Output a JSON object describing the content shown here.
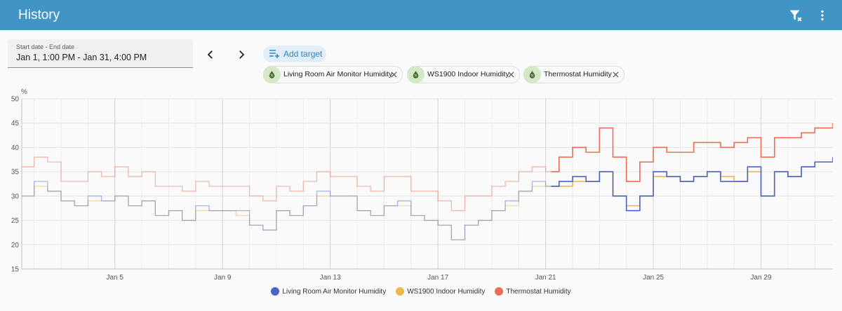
{
  "header": {
    "title": "History"
  },
  "date_range": {
    "label": "Start date - End date",
    "value": "Jan 1, 1:00 PM - Jan 31, 4:00 PM"
  },
  "toolbar": {
    "add_target_label": "Add target"
  },
  "targets": [
    {
      "label": "Living Room Air Monitor Humidity"
    },
    {
      "label": "WS1900 Indoor Humidity"
    },
    {
      "label": "Thermostat Humidity"
    }
  ],
  "colors": {
    "accent": "#4194c6",
    "living": "#4a63c9",
    "ws1900": "#ebb949",
    "thermostat": "#e96d55"
  },
  "chart_data": {
    "type": "line",
    "title": "",
    "ylabel": "%",
    "xlabel": "",
    "ylim": [
      15,
      50
    ],
    "xlim": [
      1.54,
      31.67
    ],
    "yticks": [
      "15",
      "20",
      "25",
      "30",
      "35",
      "40",
      "45",
      "50"
    ],
    "xticks": [
      {
        "label": "Jan 5",
        "x": 5
      },
      {
        "label": "Jan 9",
        "x": 9
      },
      {
        "label": "Jan 13",
        "x": 13
      },
      {
        "label": "Jan 17",
        "x": 17
      },
      {
        "label": "Jan 21",
        "x": 21
      },
      {
        "label": "Jan 25",
        "x": 25
      },
      {
        "label": "Jan 29",
        "x": 29
      }
    ],
    "highlight_from": 21.2,
    "series": [
      {
        "name": "Living Room Air Monitor Humidity",
        "color": "#4a63c9",
        "x": [
          1.54,
          2,
          2.5,
          3,
          3.5,
          4,
          4.5,
          5,
          5.5,
          6,
          6.5,
          7,
          7.5,
          8,
          8.5,
          9,
          9.5,
          10,
          10.5,
          11,
          11.5,
          12,
          12.5,
          13,
          13.5,
          14,
          14.5,
          15,
          15.5,
          16,
          16.5,
          17,
          17.5,
          18,
          18.5,
          19,
          19.5,
          20,
          20.5,
          21,
          21.5,
          22,
          22.5,
          23,
          23.5,
          24,
          24.5,
          25,
          25.5,
          26,
          26.5,
          27,
          27.5,
          28,
          28.5,
          29,
          29.5,
          30,
          30.5,
          31,
          31.67
        ],
        "y": [
          30,
          33,
          31,
          29,
          28,
          30,
          29,
          30,
          28,
          29,
          26,
          27,
          25,
          28,
          27,
          27,
          27,
          24,
          23,
          27,
          26,
          28,
          31,
          30,
          30,
          27,
          26,
          28,
          29,
          26,
          25,
          24,
          21,
          24,
          25,
          27,
          29,
          31,
          33,
          32,
          33,
          34,
          33,
          35,
          30,
          27,
          30,
          35,
          34,
          33,
          34,
          35,
          33,
          33,
          36,
          30,
          35,
          34,
          36,
          37,
          38
        ]
      },
      {
        "name": "WS1900 Indoor Humidity",
        "color": "#ebb949",
        "x": [
          1.54,
          2,
          2.5,
          3,
          3.5,
          4,
          4.5,
          5,
          5.5,
          6,
          6.5,
          7,
          7.5,
          8,
          8.5,
          9,
          9.5,
          10,
          10.5,
          11,
          11.5,
          12,
          12.5,
          13,
          13.5,
          14,
          14.5,
          15,
          15.5,
          16,
          16.5,
          17,
          17.5,
          18,
          18.5,
          19,
          19.5,
          20,
          20.5,
          21,
          21.5,
          22,
          22.5,
          23,
          23.5,
          24,
          24.5,
          25,
          25.5,
          26,
          26.5,
          27,
          27.5,
          28,
          28.5,
          29,
          29.5,
          30,
          30.5,
          31,
          31.67
        ],
        "y": [
          30,
          32,
          31,
          29,
          28,
          29,
          29,
          30,
          28,
          29,
          26,
          27,
          25,
          27,
          27,
          27,
          26,
          24,
          23,
          27,
          26,
          28,
          30,
          30,
          30,
          27,
          26,
          28,
          28,
          26,
          25,
          24,
          21,
          24,
          25,
          27,
          28,
          31,
          32,
          32,
          32,
          33,
          33,
          35,
          30,
          28,
          30,
          34,
          34,
          33,
          34,
          35,
          34,
          33,
          35,
          30,
          35,
          34,
          36,
          37,
          38
        ]
      },
      {
        "name": "Thermostat Humidity",
        "color": "#e96d55",
        "x": [
          1.54,
          2,
          2.5,
          3,
          3.5,
          4,
          4.5,
          5,
          5.5,
          6,
          6.5,
          7,
          7.5,
          8,
          8.5,
          9,
          9.5,
          10,
          10.5,
          11,
          11.5,
          12,
          12.5,
          13,
          13.5,
          14,
          14.5,
          15,
          15.5,
          16,
          16.5,
          17,
          17.5,
          18,
          18.5,
          19,
          19.5,
          20,
          20.5,
          21,
          21.5,
          22,
          22.5,
          23,
          23.5,
          24,
          24.5,
          25,
          25.5,
          26,
          26.5,
          27,
          27.5,
          28,
          28.5,
          29,
          29.5,
          30,
          30.5,
          31,
          31.67
        ],
        "y": [
          36,
          38,
          37,
          33,
          33,
          35,
          34,
          36,
          34,
          35,
          32,
          32,
          31,
          33,
          32,
          32,
          32,
          30,
          29,
          32,
          31,
          33,
          35,
          34,
          34,
          32,
          31,
          34,
          34,
          31,
          31,
          29,
          27,
          30,
          30,
          32,
          33,
          35,
          36,
          35,
          38,
          40,
          39,
          44,
          38,
          33,
          37,
          40,
          39,
          39,
          41,
          41,
          40,
          41,
          42,
          38,
          42,
          42,
          43,
          44,
          45
        ]
      }
    ]
  }
}
